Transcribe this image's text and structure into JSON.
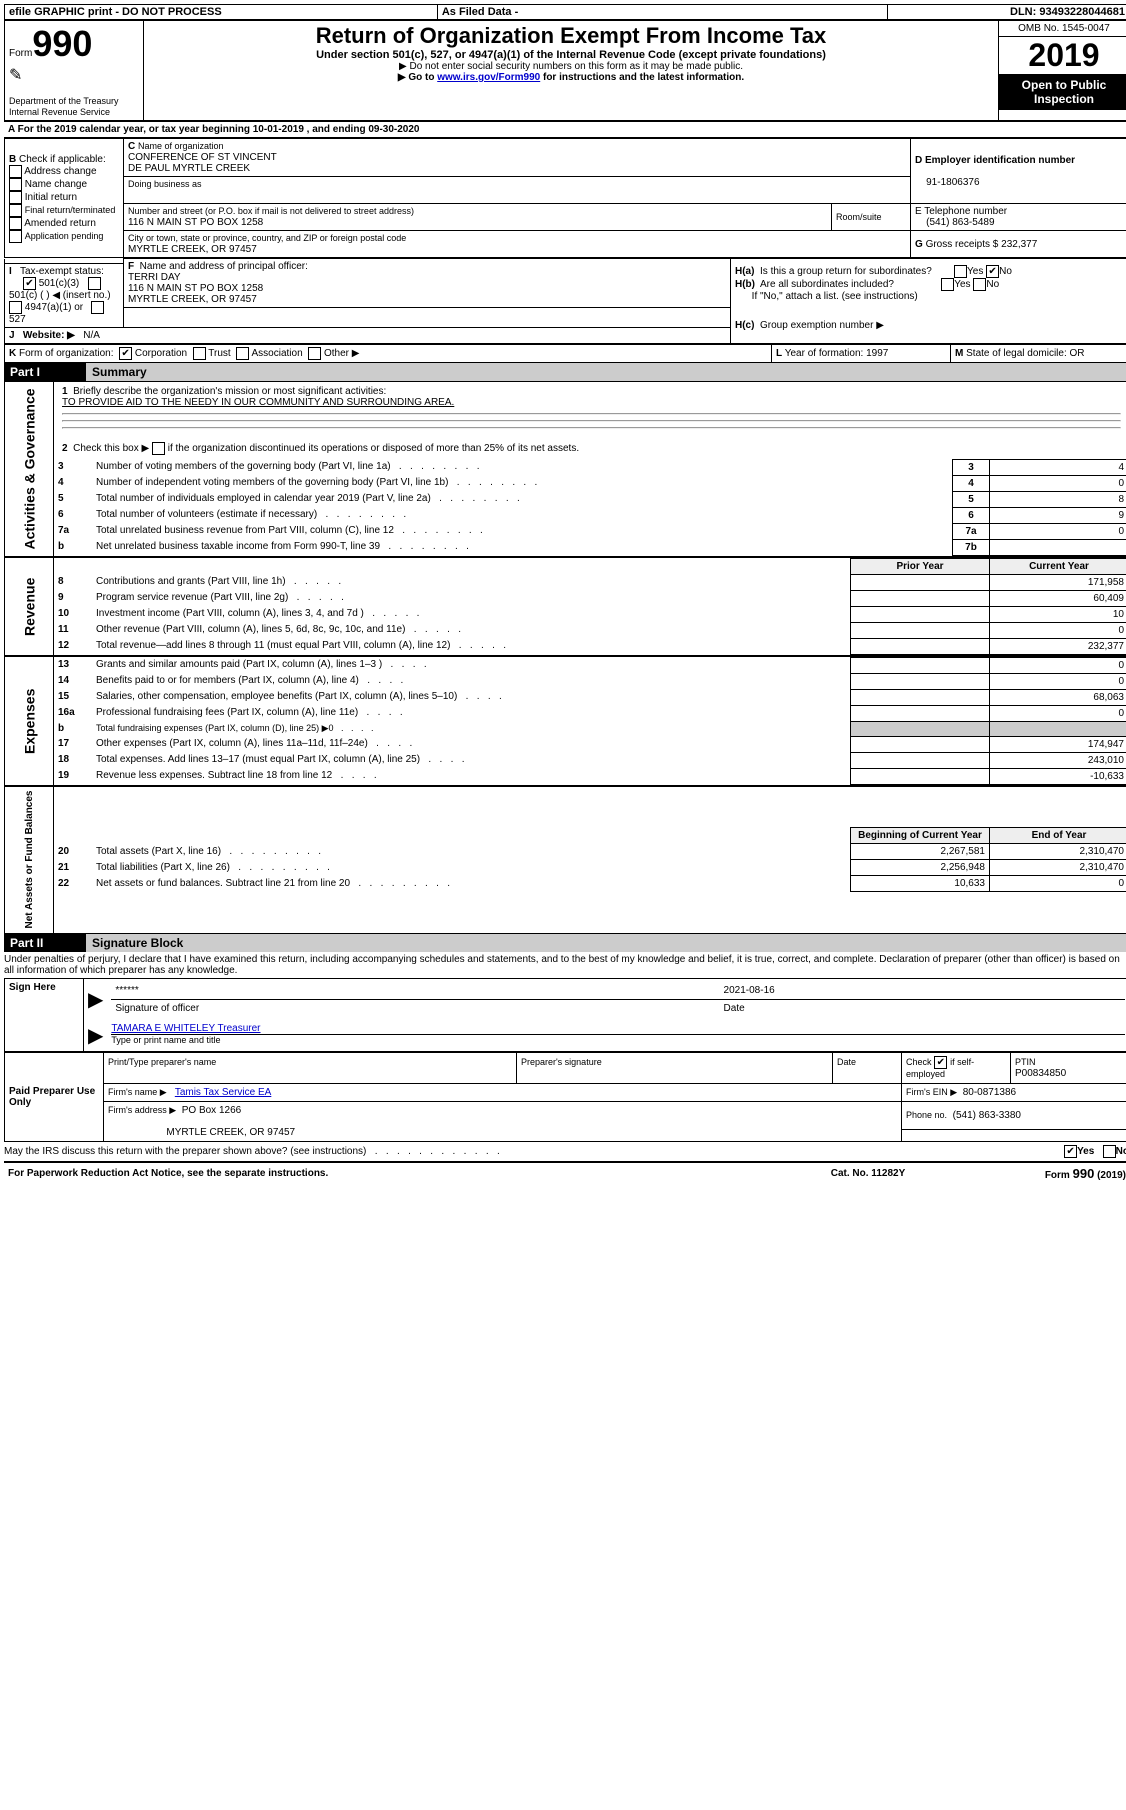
{
  "topbar": {
    "t1": "efile GRAPHIC print - DO NOT PROCESS",
    "t2": "As Filed Data -",
    "dln_lbl": "DLN:",
    "dln": "93493228044681"
  },
  "header": {
    "form_prefix": "Form",
    "form_number": "990",
    "dept": "Department of the Treasury\nInternal Revenue Service",
    "title": "Return of Organization Exempt From Income Tax",
    "subtitle": "Under section 501(c), 527, or 4947(a)(1) of the Internal Revenue Code (except private foundations)",
    "instruction1": "▶ Do not enter social security numbers on this form as it may be made public.",
    "instruction2_pre": "▶ Go to ",
    "instruction2_link": "www.irs.gov/Form990",
    "instruction2_post": " for instructions and the latest information.",
    "omb": "OMB No. 1545-0047",
    "year": "2019",
    "open_public": "Open to Public Inspection"
  },
  "row_a": {
    "text_pre": "A  For the 2019 calendar year, or tax year beginning ",
    "begin": "10-01-2019",
    "mid": "  , and ending ",
    "end": "09-30-2020"
  },
  "section_b": {
    "label_b": "B",
    "check_label": "Check if applicable:",
    "opts": [
      "Address change",
      "Name change",
      "Initial return",
      "Final return/terminated",
      "Amended return",
      "Application pending"
    ],
    "c_label": "C",
    "name_of_org_lbl": "Name of organization",
    "name1": "CONFERENCE OF ST VINCENT",
    "name2": "DE PAUL MYRTLE CREEK",
    "dba_lbl": "Doing business as",
    "dba": "",
    "street_lbl": "Number and street (or P.O. box if mail is not delivered to street address)",
    "room_lbl": "Room/suite",
    "street": "116 N MAIN ST PO BOX 1258",
    "city_lbl": "City or town, state or province, country, and ZIP or foreign postal code",
    "city": "MYRTLE CREEK, OR  97457",
    "d_lbl": "D Employer identification number",
    "ein": "91-1806376",
    "e_lbl": "E Telephone number",
    "phone": "(541) 863-5489",
    "g_lbl": "G",
    "g_text": "Gross receipts $",
    "g_val": "232,377",
    "f_lbl": "F",
    "f_text": "Name and address of principal officer:",
    "officer1": "TERRI DAY",
    "officer2": "116 N MAIN ST PO BOX 1258",
    "officer3": "MYRTLE CREEK, OR  97457",
    "ha_lbl": "H(a)",
    "ha_text": "Is this a group return for subordinates?",
    "yes": "Yes",
    "no": "No",
    "hb_lbl": "H(b)",
    "hb_text": "Are all subordinates included?",
    "hb_note": "If \"No,\" attach a list. (see instructions)",
    "hc_lbl": "H(c)",
    "hc_text": "Group exemption number ▶"
  },
  "row_i": {
    "i": "I",
    "lbl": "Tax-exempt status:",
    "o1": "501(c)(3)",
    "o2": "501(c) (   ) ◀ (insert no.)",
    "o3": "4947(a)(1) or",
    "o4": "527"
  },
  "row_j": {
    "j": "J",
    "lbl": "Website: ▶",
    "val": "N/A"
  },
  "row_k": {
    "k": "K",
    "lbl": "Form of organization:",
    "o1": "Corporation",
    "o2": "Trust",
    "o3": "Association",
    "o4": "Other ▶",
    "l_lbl": "L",
    "l_text": "Year of formation:",
    "l_val": "1997",
    "m_lbl": "M",
    "m_text": "State of legal domicile:",
    "m_val": "OR"
  },
  "part1": {
    "part": "Part I",
    "title": "Summary",
    "q1_lbl": "1",
    "q1": "Briefly describe the organization's mission or most significant activities:",
    "q1_ans": "TO PROVIDE AID TO THE NEEDY IN OUR COMMUNITY AND SURROUNDING AREA.",
    "q2_lbl": "2",
    "q2_pre": "Check this box ▶",
    "q2_post": "if the organization discontinued its operations or disposed of more than 25% of its net assets.",
    "rows_gov": [
      {
        "n": "3",
        "t": "Number of voting members of the governing body (Part VI, line 1a)",
        "c": "3",
        "v": "4"
      },
      {
        "n": "4",
        "t": "Number of independent voting members of the governing body (Part VI, line 1b)",
        "c": "4",
        "v": "0"
      },
      {
        "n": "5",
        "t": "Total number of individuals employed in calendar year 2019 (Part V, line 2a)",
        "c": "5",
        "v": "8"
      },
      {
        "n": "6",
        "t": "Total number of volunteers (estimate if necessary)",
        "c": "6",
        "v": "9"
      },
      {
        "n": "7a",
        "t": "Total unrelated business revenue from Part VIII, column (C), line 12",
        "c": "7a",
        "v": "0"
      },
      {
        "n": "b",
        "t": "Net unrelated business taxable income from Form 990-T, line 39",
        "c": "7b",
        "v": ""
      }
    ],
    "py": "Prior Year",
    "cy": "Current Year",
    "revenue_rows": [
      {
        "n": "8",
        "t": "Contributions and grants (Part VIII, line 1h)",
        "pv": "",
        "cv": "171,958"
      },
      {
        "n": "9",
        "t": "Program service revenue (Part VIII, line 2g)",
        "pv": "",
        "cv": "60,409"
      },
      {
        "n": "10",
        "t": "Investment income (Part VIII, column (A), lines 3, 4, and 7d )",
        "pv": "",
        "cv": "10"
      },
      {
        "n": "11",
        "t": "Other revenue (Part VIII, column (A), lines 5, 6d, 8c, 9c, 10c, and 11e)",
        "pv": "",
        "cv": "0"
      },
      {
        "n": "12",
        "t": "Total revenue—add lines 8 through 11 (must equal Part VIII, column (A), line 12)",
        "pv": "",
        "cv": "232,377"
      }
    ],
    "expense_rows": [
      {
        "n": "13",
        "t": "Grants and similar amounts paid (Part IX, column (A), lines 1–3 )",
        "pv": "",
        "cv": "0"
      },
      {
        "n": "14",
        "t": "Benefits paid to or for members (Part IX, column (A), line 4)",
        "pv": "",
        "cv": "0"
      },
      {
        "n": "15",
        "t": "Salaries, other compensation, employee benefits (Part IX, column (A), lines 5–10)",
        "pv": "",
        "cv": "68,063"
      },
      {
        "n": "16a",
        "t": "Professional fundraising fees (Part IX, column (A), line 11e)",
        "pv": "",
        "cv": "0"
      },
      {
        "n": "b",
        "t": "Total fundraising expenses (Part IX, column (D), line 25) ▶0",
        "pv": "GREY",
        "cv": "GREY"
      },
      {
        "n": "17",
        "t": "Other expenses (Part IX, column (A), lines 11a–11d, 11f–24e)",
        "pv": "",
        "cv": "174,947"
      },
      {
        "n": "18",
        "t": "Total expenses. Add lines 13–17 (must equal Part IX, column (A), line 25)",
        "pv": "",
        "cv": "243,010"
      },
      {
        "n": "19",
        "t": "Revenue less expenses. Subtract line 18 from line 12",
        "pv": "",
        "cv": "-10,633"
      }
    ],
    "bcy": "Beginning of Current Year",
    "ecy": "End of Year",
    "net_rows": [
      {
        "n": "20",
        "t": "Total assets (Part X, line 16)",
        "pv": "2,267,581",
        "cv": "2,310,470"
      },
      {
        "n": "21",
        "t": "Total liabilities (Part X, line 26)",
        "pv": "2,256,948",
        "cv": "2,310,470"
      },
      {
        "n": "22",
        "t": "Net assets or fund balances. Subtract line 21 from line 20",
        "pv": "10,633",
        "cv": "0"
      }
    ],
    "vert_gov": "Activities & Governance",
    "vert_rev": "Revenue",
    "vert_exp": "Expenses",
    "vert_net": "Net Assets or Fund Balances"
  },
  "part2": {
    "part": "Part II",
    "title": "Signature Block",
    "perjury": "Under penalties of perjury, I declare that I have examined this return, including accompanying schedules and statements, and to the best of my knowledge and belief, it is true, correct, and complete. Declaration of preparer (other than officer) is based on all information of which preparer has any knowledge.",
    "sign_here": "Sign Here",
    "stars": "******",
    "sig_of_officer": "Signature of officer",
    "date": "2021-08-16",
    "date_lbl": "Date",
    "officer_name": "TAMARA E WHITELEY Treasurer",
    "type_name": "Type or print name and title",
    "paid_preparer": "Paid Preparer Use Only",
    "print_name_lbl": "Print/Type preparer's name",
    "prep_sig_lbl": "Preparer's signature",
    "check_self": "Check",
    "if_self": "if self-employed",
    "ptin_lbl": "PTIN",
    "ptin": "P00834850",
    "firm_name_lbl": "Firm's name    ▶",
    "firm_name": "Tamis Tax Service EA",
    "firm_ein_lbl": "Firm's EIN ▶",
    "firm_ein": "80-0871386",
    "firm_addr_lbl": "Firm's address ▶",
    "firm_addr1": "PO Box 1266",
    "firm_addr2": "MYRTLE CREEK, OR  97457",
    "phone_lbl": "Phone no.",
    "phone": "(541) 863-3380",
    "discuss": "May the IRS discuss this return with the preparer shown above? (see instructions)",
    "paperwork": "For Paperwork Reduction Act Notice, see the separate instructions.",
    "catno": "Cat. No. 11282Y",
    "formfooter": "Form 990 (2019)"
  }
}
